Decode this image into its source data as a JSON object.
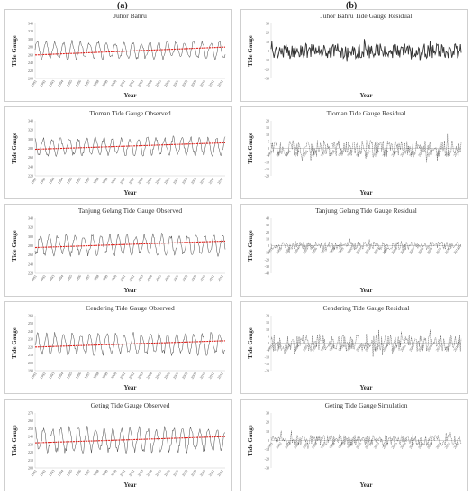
{
  "column_labels": [
    "(a)",
    "(b)"
  ],
  "chart_data": [
    {
      "type": "line",
      "title": "Juhor Bahru",
      "ylabel": "Tide Gauge",
      "xlabel": "Year",
      "x_ticks": [
        "1991",
        "1992",
        "1993",
        "1994",
        "1995",
        "1996",
        "1997",
        "1998",
        "1999",
        "2000",
        "2001",
        "2002",
        "2003",
        "2004",
        "2005",
        "2006",
        "2007",
        "2008",
        "2009",
        "2010",
        "2011",
        "2012"
      ],
      "y_ticks": [
        "200",
        "220",
        "240",
        "260",
        "280",
        "300",
        "320",
        "340"
      ],
      "ylim": [
        200,
        340
      ],
      "series": [
        {
          "kind": "observed",
          "mean": 272,
          "amplitude": 20
        },
        {
          "kind": "trend",
          "start": 260,
          "end": 280
        }
      ]
    },
    {
      "type": "line",
      "title": "Juhor Bahru Tide Gauge Residual",
      "ylabel": "Tide Gauge",
      "xlabel": "Year",
      "x_ticks": [],
      "y_ticks": [
        "-30",
        "-20",
        "-10",
        "0",
        "10",
        "20",
        "30"
      ],
      "ylim": [
        -30,
        30
      ],
      "series": [
        {
          "kind": "residual",
          "amplitude": 8
        }
      ]
    },
    {
      "type": "line",
      "title": "Tioman Tide Gauge Observed",
      "ylabel": "Tide Gauge",
      "xlabel": "Year",
      "x_ticks": [
        "1991",
        "1992",
        "1993",
        "1994",
        "1995",
        "1996",
        "1997",
        "1998",
        "1999",
        "2000",
        "2001",
        "2002",
        "2003",
        "2004",
        "2005",
        "2006",
        "2007",
        "2008",
        "2009",
        "2010",
        "2011",
        "2012"
      ],
      "y_ticks": [
        "220",
        "240",
        "260",
        "280",
        "300",
        "320",
        "340"
      ],
      "ylim": [
        220,
        340
      ],
      "series": [
        {
          "kind": "observed",
          "mean": 284,
          "amplitude": 18
        },
        {
          "kind": "trend",
          "start": 278,
          "end": 292
        }
      ]
    },
    {
      "type": "line",
      "title": "Tioman Tide Gauge Residual",
      "ylabel": "Tide Gauge",
      "xlabel": "Year",
      "x_ticks": [
        "1991",
        "1992",
        "1993",
        "1994",
        "1995",
        "1996",
        "1997",
        "1998",
        "1999",
        "2000",
        "2001",
        "2002",
        "2003",
        "2004",
        "2005",
        "2006",
        "2007",
        "2008",
        "2009",
        "2010",
        "2011",
        "2012"
      ],
      "y_ticks": [
        "-20",
        "-15",
        "-10",
        "-5",
        "0",
        "5",
        "10",
        "15",
        "20"
      ],
      "ylim": [
        -20,
        20
      ],
      "series": [
        {
          "kind": "residual",
          "amplitude": 6
        }
      ]
    },
    {
      "type": "line",
      "title": "Tanjung Gelang Tide Gauge Observed",
      "ylabel": "Tide Gauge",
      "xlabel": "Year",
      "x_ticks": [
        "1991",
        "1992",
        "1993",
        "1994",
        "1995",
        "1996",
        "1997",
        "1998",
        "1999",
        "2000",
        "2001",
        "2002",
        "2003",
        "2004",
        "2005",
        "2006",
        "2007",
        "2008",
        "2009",
        "2010",
        "2011",
        "2012"
      ],
      "y_ticks": [
        "220",
        "240",
        "260",
        "280",
        "300",
        "320",
        "340"
      ],
      "ylim": [
        220,
        340
      ],
      "series": [
        {
          "kind": "observed",
          "mean": 282,
          "amplitude": 20
        },
        {
          "kind": "trend",
          "start": 276,
          "end": 290
        }
      ]
    },
    {
      "type": "line",
      "title": "Tanjung Gelang Tide Gauge Residual",
      "ylabel": "Tide Gauge",
      "xlabel": "Year",
      "x_ticks": [
        "1991",
        "1992",
        "1993",
        "1994",
        "1995",
        "1996",
        "1997",
        "1998",
        "1999",
        "2000",
        "2001",
        "2002",
        "2003",
        "2004",
        "2005",
        "2006",
        "2007",
        "2008",
        "2009",
        "2010",
        "2011",
        "2012"
      ],
      "y_ticks": [
        "-40",
        "-30",
        "-20",
        "-10",
        "0",
        "10",
        "20",
        "30",
        "40"
      ],
      "ylim": [
        -40,
        40
      ],
      "series": [
        {
          "kind": "residual",
          "amplitude": 6
        }
      ]
    },
    {
      "type": "line",
      "title": "Cendering Tide Gauge Observed",
      "ylabel": "Tide Gauge",
      "xlabel": "Year",
      "x_ticks": [
        "1991",
        "1992",
        "1993",
        "1994",
        "1995",
        "1996",
        "1997",
        "1998",
        "1999",
        "2000",
        "2001",
        "2002",
        "2003",
        "2004",
        "2005",
        "2006",
        "2007",
        "2008",
        "2009",
        "2010",
        "2011",
        "2012"
      ],
      "y_ticks": [
        "190",
        "200",
        "210",
        "220",
        "230",
        "240",
        "250",
        "260"
      ],
      "ylim": [
        190,
        260
      ],
      "series": [
        {
          "kind": "observed",
          "mean": 224,
          "amplitude": 12
        },
        {
          "kind": "trend",
          "start": 220,
          "end": 228
        }
      ]
    },
    {
      "type": "line",
      "title": "Cendering Tide Gauge Residual",
      "ylabel": "Tide Gauge",
      "xlabel": "Year",
      "x_ticks": [
        "1991",
        "1992",
        "1993",
        "1994",
        "1995",
        "1996",
        "1997",
        "1998",
        "1999",
        "2000",
        "2001",
        "2002",
        "2003",
        "2004",
        "2005",
        "2006",
        "2007",
        "2008",
        "2009",
        "2010",
        "2011",
        "2012"
      ],
      "y_ticks": [
        "-20",
        "-15",
        "-10",
        "-5",
        "0",
        "5",
        "10",
        "15",
        "20"
      ],
      "ylim": [
        -20,
        20
      ],
      "series": [
        {
          "kind": "residual",
          "amplitude": 6
        }
      ]
    },
    {
      "type": "line",
      "title": "Geting Tide Gauge Observed",
      "ylabel": "Tide Gauge",
      "xlabel": "Year",
      "x_ticks": [
        "1991",
        "1992",
        "1993",
        "1994",
        "1995",
        "1996",
        "1997",
        "1998",
        "1999",
        "2000",
        "2001",
        "2002",
        "2003",
        "2004",
        "2005",
        "2006",
        "2007",
        "2008",
        "2009",
        "2010",
        "2011",
        "2012"
      ],
      "y_ticks": [
        "200",
        "210",
        "220",
        "230",
        "240",
        "250",
        "260",
        "270"
      ],
      "ylim": [
        200,
        270
      ],
      "series": [
        {
          "kind": "observed",
          "mean": 236,
          "amplitude": 14
        },
        {
          "kind": "trend",
          "start": 232,
          "end": 240
        }
      ]
    },
    {
      "type": "line",
      "title": "Geting Tide Gauge Simulation",
      "ylabel": "Tide Gauge",
      "xlabel": "Year",
      "x_ticks": [
        "1991",
        "1992",
        "1993",
        "1994",
        "1995",
        "1996",
        "1997",
        "1998",
        "1999",
        "2000",
        "2001",
        "2002",
        "2003",
        "2004",
        "2005",
        "2006",
        "2007",
        "2008",
        "2009",
        "2010",
        "2011",
        "2012"
      ],
      "y_ticks": [
        "-30",
        "-20",
        "-10",
        "0",
        "10",
        "20",
        "30"
      ],
      "ylim": [
        -30,
        30
      ],
      "series": [
        {
          "kind": "residual",
          "amplitude": 6
        }
      ]
    }
  ],
  "colors": {
    "line": "#333333",
    "trend": "#e0201b",
    "frame": "#cfcfcf",
    "zero": "#999999"
  }
}
